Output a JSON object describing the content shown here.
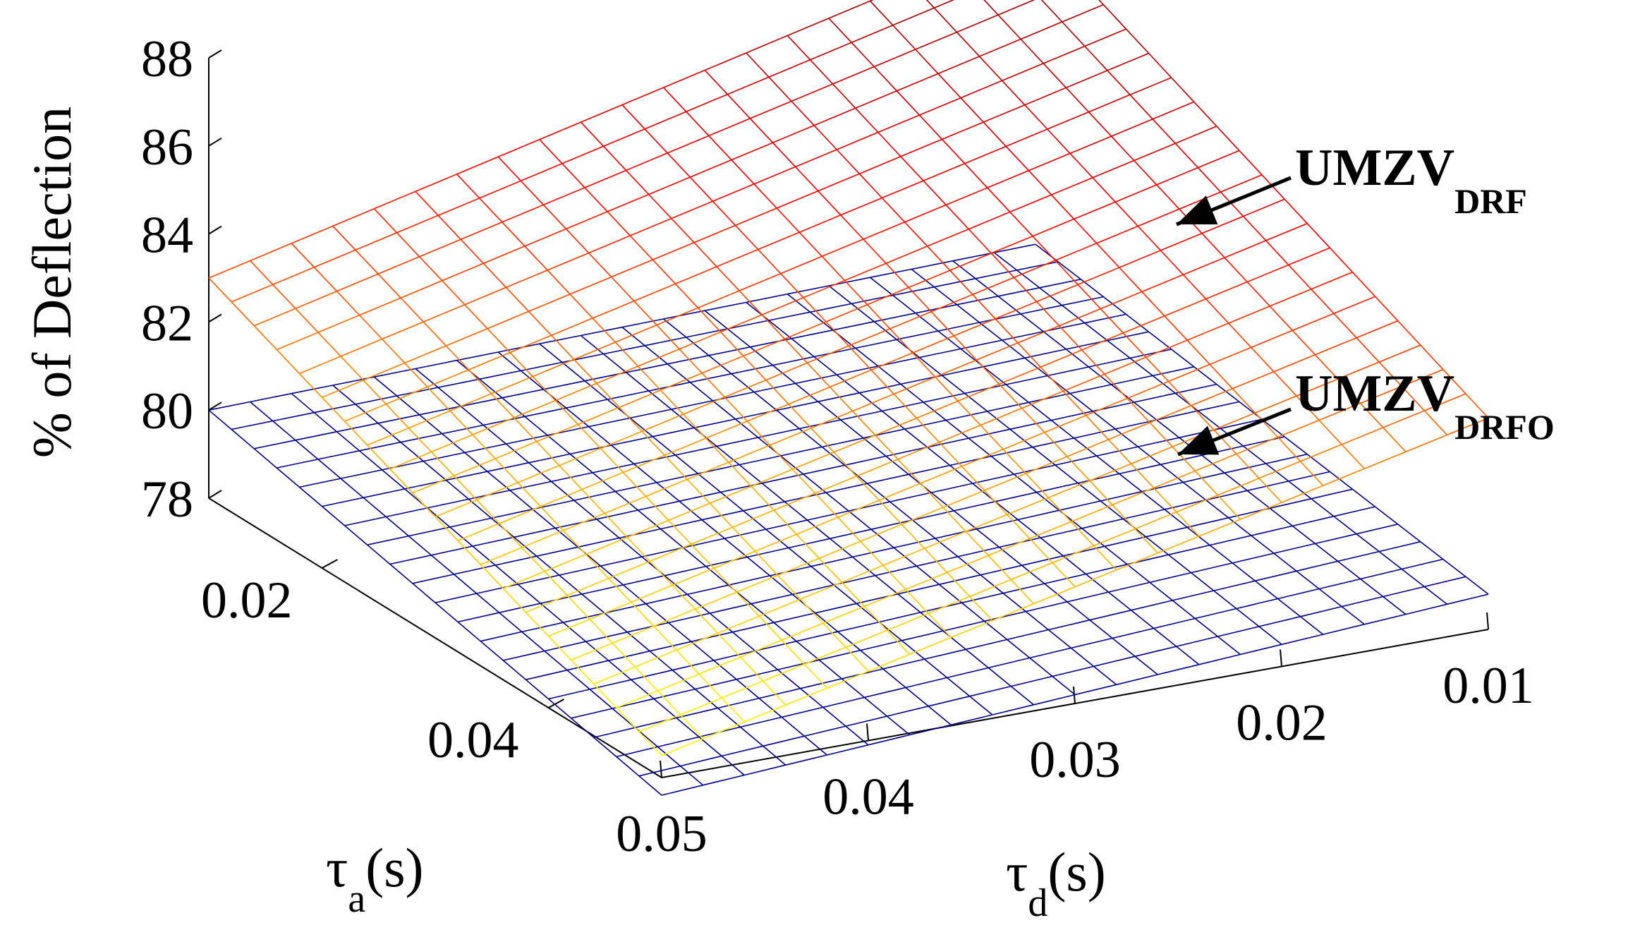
{
  "chart_data": {
    "type": "surface",
    "zlabel": "% of Deflection",
    "xlabel_main": "τ",
    "xlabel_sub": "d",
    "xlabel_tail": "(s)",
    "ylabel_main": "τ",
    "ylabel_sub": "a",
    "ylabel_tail": "(s)",
    "z_ticks": [
      "78",
      "80",
      "82",
      "84",
      "86",
      "88"
    ],
    "z_tick_values": [
      78,
      80,
      82,
      84,
      86,
      88
    ],
    "zlim": [
      78,
      88
    ],
    "x_ticks": [
      "0.01",
      "0.02",
      "0.03",
      "0.04",
      "0.05"
    ],
    "x_tick_values": [
      0.01,
      0.02,
      0.03,
      0.04,
      0.05
    ],
    "xlim": [
      0.01,
      0.05
    ],
    "y_ticks": [
      "0.02",
      "0.04"
    ],
    "y_tick_values": [
      0.02,
      0.04
    ],
    "ylim": [
      0.01,
      0.05
    ],
    "grid_points": 21,
    "series": [
      {
        "name": "UMZV",
        "subscript": "DRF",
        "corners": {
          "td0.01_ta0.01": 87.5,
          "td0.05_ta0.01": 83.0,
          "td0.01_ta0.05": 82.8,
          "td0.05_ta0.05": 78.5
        },
        "colormap": [
          "#ffff00",
          "#ffa500",
          "#ff0000",
          "#8b0000"
        ]
      },
      {
        "name": "UMZV",
        "subscript": "DRFO",
        "corners": {
          "td0.01_ta0.01": 80.4,
          "td0.05_ta0.01": 80.0,
          "td0.01_ta0.05": 78.8,
          "td0.05_ta0.05": 77.6
        },
        "color": "#00008b"
      }
    ],
    "colors": {
      "axis": "#000000",
      "lower_surface": "#00008b"
    }
  }
}
